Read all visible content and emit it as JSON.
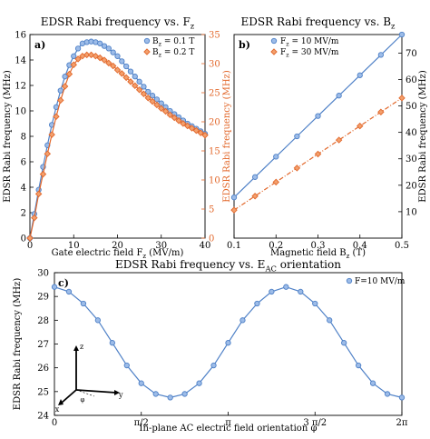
{
  "chart_data": [
    {
      "type": "line",
      "panel_label": "a)",
      "title": "EDSR Rabi frequency vs. F",
      "title_sub": "z",
      "xlabel": "Gate electric field F",
      "xlabel_sub": "z",
      "xlabel_unit": "(MV/m)",
      "ylabel": "EDSR Rabi frequency (MHz)",
      "ylabel_right": "EDSR Rabi frequency (MHz)",
      "xlim": [
        0,
        40
      ],
      "ylim": [
        0,
        16
      ],
      "ylim_right": [
        0,
        35
      ],
      "xticks": [
        0,
        10,
        20,
        30,
        40
      ],
      "yticks": [
        0,
        2,
        4,
        6,
        8,
        10,
        12,
        14,
        16
      ],
      "yticks_right": [
        0,
        5,
        10,
        15,
        20,
        25,
        30,
        35
      ],
      "legend_position": "top-right",
      "series": [
        {
          "name": "B",
          "name_sub": "z",
          "name_value": "= 0.1 T",
          "axis": "left",
          "color": "#4f81c7",
          "marker": "circle",
          "x": [
            0,
            1,
            2,
            3,
            4,
            5,
            6,
            7,
            8,
            9,
            10,
            11,
            12,
            13,
            14,
            15,
            16,
            17,
            18,
            19,
            20,
            21,
            22,
            23,
            24,
            25,
            26,
            27,
            28,
            29,
            30,
            31,
            32,
            33,
            34,
            35,
            36,
            37,
            38,
            39,
            40
          ],
          "y": [
            0,
            1.9,
            3.8,
            5.6,
            7.3,
            8.9,
            10.3,
            11.6,
            12.7,
            13.6,
            14.3,
            14.9,
            15.3,
            15.4,
            15.45,
            15.4,
            15.3,
            15.1,
            14.9,
            14.6,
            14.3,
            13.9,
            13.5,
            13.1,
            12.7,
            12.3,
            11.9,
            11.5,
            11.2,
            10.9,
            10.6,
            10.3,
            10.0,
            9.75,
            9.5,
            9.25,
            9.0,
            8.8,
            8.6,
            8.4,
            8.2
          ]
        },
        {
          "name": "B",
          "name_sub": "z",
          "name_value": "= 0.2 T",
          "axis": "right",
          "color": "#e2672a",
          "marker": "diamond",
          "x": [
            0,
            1,
            2,
            3,
            4,
            5,
            6,
            7,
            8,
            9,
            10,
            11,
            12,
            13,
            14,
            15,
            16,
            17,
            18,
            19,
            20,
            21,
            22,
            23,
            24,
            25,
            26,
            27,
            28,
            29,
            30,
            31,
            32,
            33,
            34,
            35,
            36,
            37,
            38,
            39,
            40
          ],
          "y": [
            0,
            3.5,
            7.6,
            11.0,
            14.5,
            17.8,
            20.9,
            23.7,
            26.1,
            28.2,
            29.8,
            30.8,
            31.3,
            31.5,
            31.5,
            31.3,
            31.0,
            30.6,
            30.1,
            29.6,
            28.9,
            28.3,
            27.6,
            26.9,
            26.2,
            25.5,
            24.8,
            24.1,
            23.5,
            22.9,
            22.3,
            21.8,
            21.2,
            20.7,
            20.2,
            19.7,
            19.3,
            18.9,
            18.5,
            18.1,
            17.7
          ]
        }
      ]
    },
    {
      "type": "line",
      "panel_label": "b)",
      "title": "EDSR Rabi frequency vs. B",
      "title_sub": "z",
      "xlabel": "Magnetic field B",
      "xlabel_sub": "z",
      "xlabel_unit": "(T)",
      "ylabel_right": "EDSR Rabi frequency (MHz)",
      "xlim": [
        0.1,
        0.5
      ],
      "ylim": [
        0,
        77
      ],
      "xticks": [
        0.1,
        0.2,
        0.3,
        0.4,
        0.5
      ],
      "yticks": [
        10,
        20,
        30,
        40,
        50,
        60,
        70
      ],
      "legend_position": "top-left",
      "series": [
        {
          "name": "F",
          "name_sub": "z",
          "name_value": "= 10 MV/m",
          "color": "#4f81c7",
          "marker": "circle",
          "x": [
            0.1,
            0.15,
            0.2,
            0.25,
            0.3,
            0.35,
            0.4,
            0.45,
            0.5
          ],
          "y": [
            15.4,
            23.1,
            30.8,
            38.5,
            46.2,
            53.9,
            61.6,
            69.3,
            77.0
          ]
        },
        {
          "name": "F",
          "name_sub": "z",
          "name_value": "= 30 MV/m",
          "color": "#e2672a",
          "marker": "diamond",
          "x": [
            0.1,
            0.15,
            0.2,
            0.25,
            0.3,
            0.35,
            0.4,
            0.45,
            0.5
          ],
          "y": [
            10.6,
            15.9,
            21.2,
            26.5,
            31.8,
            37.1,
            42.4,
            47.7,
            53.0
          ]
        }
      ]
    },
    {
      "type": "line",
      "panel_label": "c)",
      "title": "EDSR Rabi frequency vs. E",
      "title_sub": "AC",
      "title_rest": " orientation",
      "xlabel": "In-plane AC electric field orientation φ",
      "ylabel": "EDSR Rabi frequency (MHz)",
      "xlim": [
        0,
        6.2832
      ],
      "ylim": [
        24,
        30
      ],
      "xticks": [
        0,
        1.5708,
        3.1416,
        4.7124,
        6.2832
      ],
      "xtick_labels": [
        "0",
        "π/2",
        "π",
        "3 π/2",
        "2π"
      ],
      "yticks": [
        24,
        25,
        26,
        27,
        28,
        29,
        30
      ],
      "legend_position": "top-right",
      "inset_axes": {
        "x": "x",
        "y": "y",
        "z": "z",
        "angle": "φ"
      },
      "series": [
        {
          "name": "F=10 MV/m",
          "color": "#4f81c7",
          "marker": "circle",
          "x": [
            0,
            0.2618,
            0.5236,
            0.7854,
            1.0472,
            1.309,
            1.5708,
            1.8326,
            2.0944,
            2.3562,
            2.618,
            2.8798,
            3.1416,
            3.4034,
            3.6652,
            3.927,
            4.1888,
            4.4506,
            4.7124,
            4.9742,
            5.236,
            5.4978,
            5.7596,
            6.0214,
            6.2832
          ],
          "y": [
            29.4,
            29.2,
            28.7,
            28.0,
            27.05,
            26.1,
            25.35,
            24.9,
            24.75,
            24.9,
            25.35,
            26.1,
            27.05,
            28.0,
            28.7,
            29.2,
            29.4,
            29.2,
            28.7,
            28.0,
            27.05,
            26.1,
            25.35,
            24.9,
            24.75
          ]
        }
      ]
    }
  ]
}
